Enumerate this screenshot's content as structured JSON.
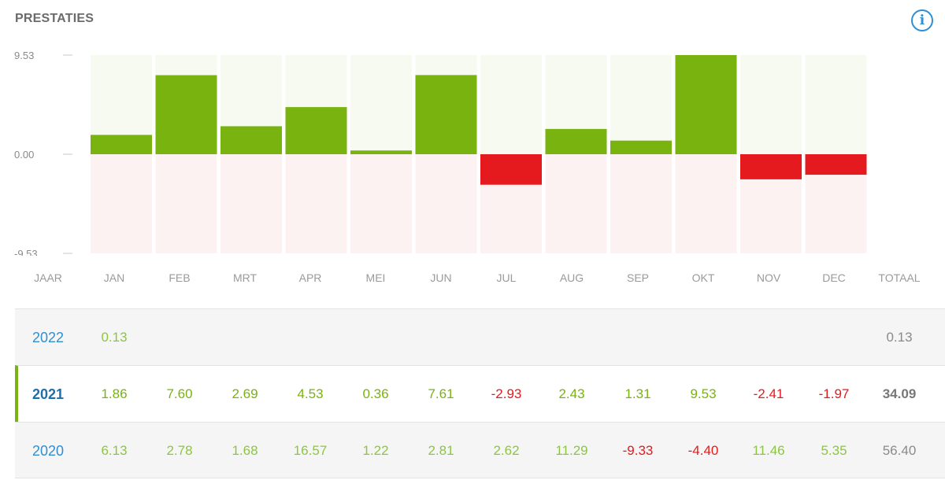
{
  "header": {
    "title": "PRESTATIES",
    "info_icon": "i"
  },
  "colors": {
    "positive": "#78b30f",
    "negative": "#e51a1e",
    "positive_bg": "#f6faf1",
    "negative_bg": "#fdf2f2",
    "year_link": "#2f8fd0"
  },
  "chart_data": {
    "type": "bar",
    "categories": [
      "JAN",
      "FEB",
      "MRT",
      "APR",
      "MEI",
      "JUN",
      "JUL",
      "AUG",
      "SEP",
      "OKT",
      "NOV",
      "DEC"
    ],
    "values": [
      1.86,
      7.6,
      2.69,
      4.53,
      0.36,
      7.61,
      -2.93,
      2.43,
      1.31,
      9.53,
      -2.41,
      -1.97
    ],
    "ylim": [
      -9.53,
      9.53
    ],
    "yticks": [
      9.53,
      0,
      -9.53
    ],
    "ytick_labels": [
      "9.53",
      "0.00",
      "-9.53"
    ]
  },
  "table": {
    "headers": [
      "JAAR",
      "JAN",
      "FEB",
      "MRT",
      "APR",
      "MEI",
      "JUN",
      "JUL",
      "AUG",
      "SEP",
      "OKT",
      "NOV",
      "DEC",
      "TOTAAL"
    ],
    "rows": [
      {
        "year": "2022",
        "values": [
          "0.13",
          "",
          "",
          "",
          "",
          "",
          "",
          "",
          "",
          "",
          "",
          ""
        ],
        "total": "0.13"
      },
      {
        "year": "2021",
        "values": [
          "1.86",
          "7.60",
          "2.69",
          "4.53",
          "0.36",
          "7.61",
          "-2.93",
          "2.43",
          "1.31",
          "9.53",
          "-2.41",
          "-1.97"
        ],
        "total": "34.09"
      },
      {
        "year": "2020",
        "values": [
          "6.13",
          "2.78",
          "1.68",
          "16.57",
          "1.22",
          "2.81",
          "2.62",
          "11.29",
          "-9.33",
          "-4.40",
          "11.46",
          "5.35"
        ],
        "total": "56.40"
      }
    ],
    "active_year": "2021"
  }
}
